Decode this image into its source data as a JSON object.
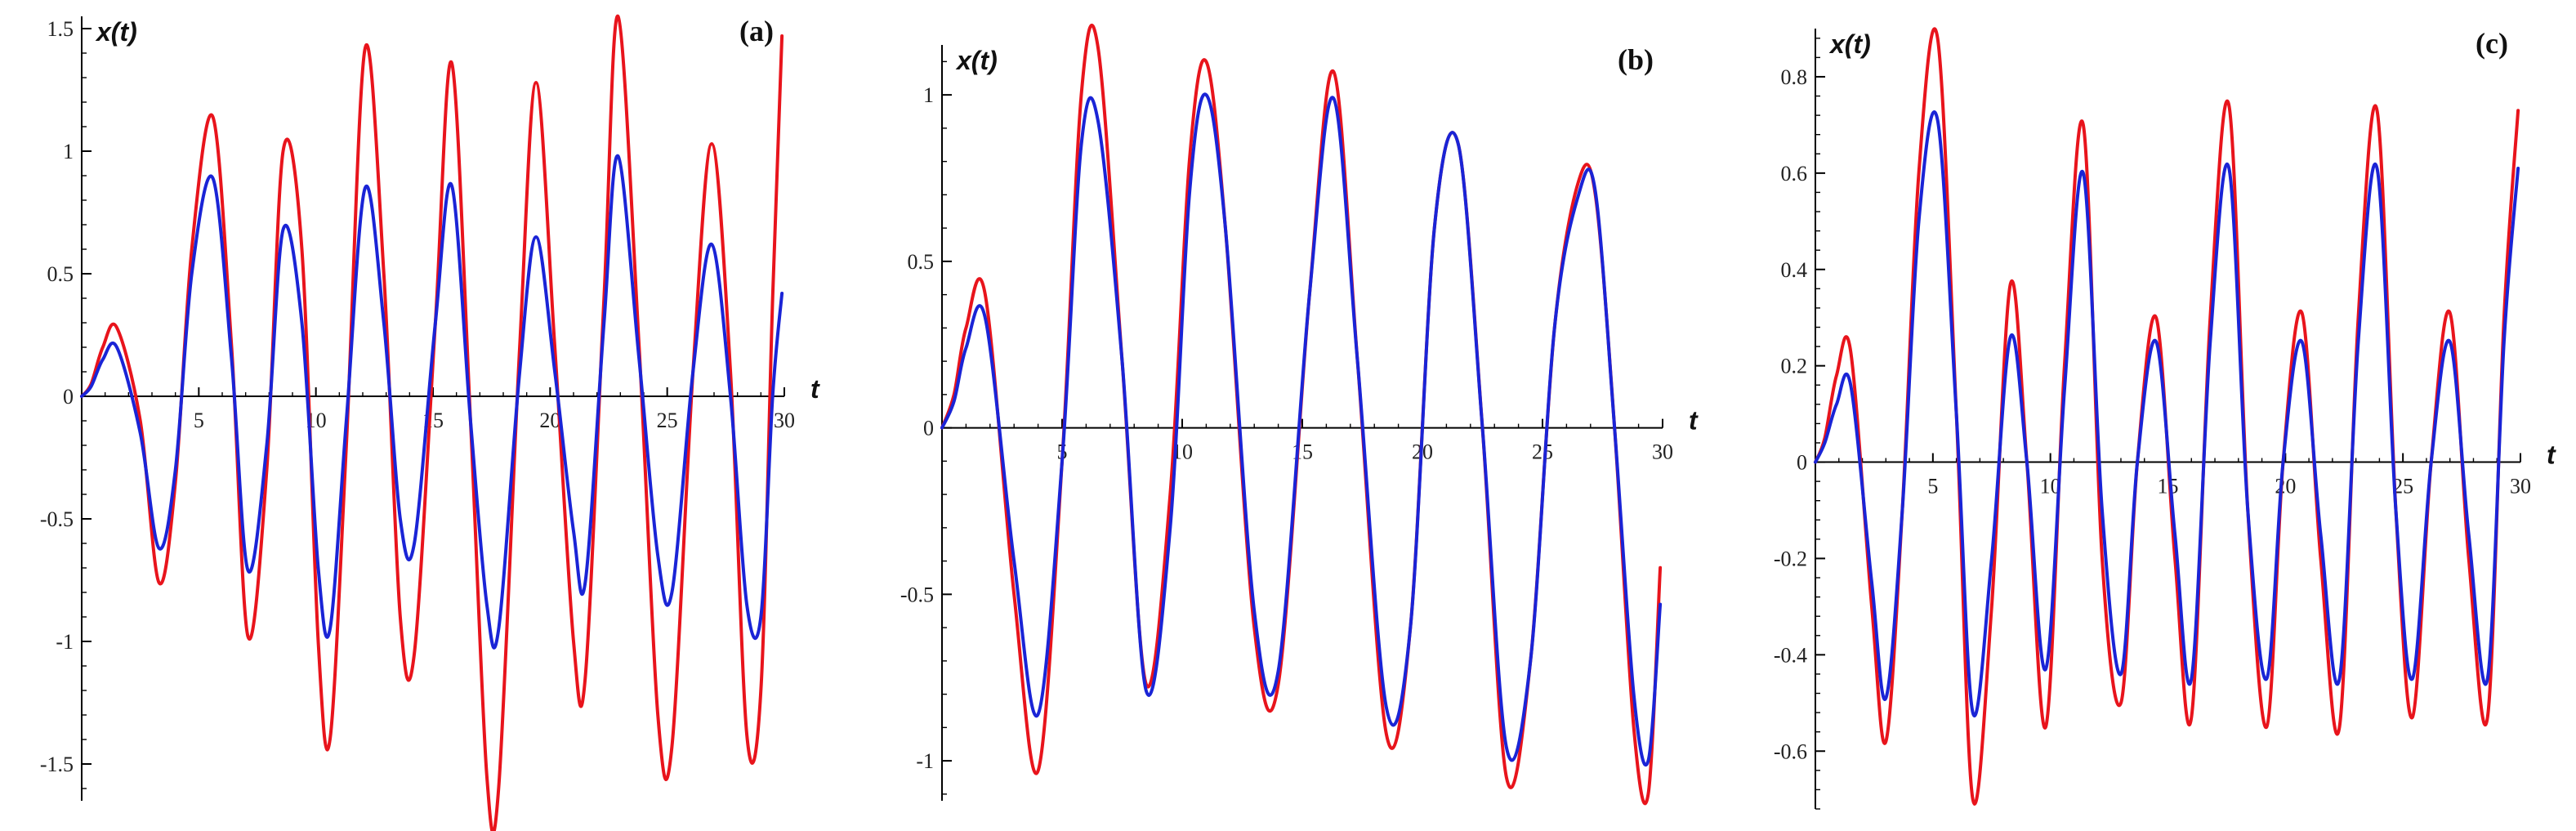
{
  "chart_data": [
    {
      "type": "line",
      "panel_label": "(a)",
      "xlabel": "t",
      "ylabel": "x(t)",
      "xlim": [
        0,
        30
      ],
      "ylim": [
        -1.65,
        1.55
      ],
      "x_ticks": [
        5,
        10,
        15,
        20,
        25,
        30
      ],
      "x_tick_labels": [
        "5",
        "10",
        "15",
        "20",
        "25",
        "30"
      ],
      "y_ticks": [
        -1.5,
        -1,
        -0.5,
        0,
        0.5,
        1,
        1.5
      ],
      "y_tick_labels": [
        "-1.5",
        "-1",
        "-0.5",
        "0",
        "0.5",
        "1",
        "1.5"
      ],
      "grid": false,
      "series": [
        {
          "color": "#e8141c",
          "x": [
            0,
            0.4,
            0.9,
            1.5,
            2.5,
            3.3,
            4.0,
            4.7,
            5.6,
            6.4,
            7.1,
            7.9,
            8.6,
            9.4,
            10.1,
            10.6,
            11.3,
            12.1,
            12.9,
            13.6,
            14.2,
            15.1,
            15.8,
            16.6,
            17.3,
            17.8,
            18.7,
            19.4,
            20.2,
            21.0,
            21.5,
            22.3,
            22.9,
            23.8,
            24.6,
            25.2,
            26.1,
            26.9,
            27.7,
            28.4,
            29.0,
            29.5,
            29.9
          ],
          "y": [
            0,
            0.05,
            0.2,
            0.28,
            -0.1,
            -0.76,
            -0.35,
            0.6,
            1.14,
            0.2,
            -0.98,
            -0.3,
            1.0,
            0.6,
            -1.0,
            -1.4,
            -0.2,
            1.42,
            0.5,
            -0.9,
            -1.05,
            0.3,
            1.36,
            -0.1,
            -1.55,
            -1.6,
            0.2,
            1.28,
            0.2,
            -1.0,
            -1.15,
            0.4,
            1.55,
            0.2,
            -1.3,
            -1.43,
            0.1,
            1.03,
            0.1,
            -1.38,
            -1.2,
            0.4,
            1.47
          ]
        },
        {
          "color": "#1a24d6",
          "x": [
            0,
            0.4,
            0.9,
            1.5,
            2.5,
            3.3,
            4.0,
            4.7,
            5.6,
            6.4,
            7.1,
            7.9,
            8.6,
            9.4,
            10.1,
            10.6,
            11.3,
            12.1,
            12.9,
            13.6,
            14.2,
            15.1,
            15.8,
            16.6,
            17.3,
            17.8,
            18.7,
            19.4,
            20.2,
            21.0,
            21.5,
            22.3,
            22.9,
            23.8,
            24.6,
            25.2,
            26.1,
            26.9,
            27.7,
            28.4,
            29.0,
            29.5,
            29.9
          ],
          "y": [
            0,
            0.04,
            0.15,
            0.2,
            -0.15,
            -0.62,
            -0.3,
            0.5,
            0.89,
            0.15,
            -0.71,
            -0.2,
            0.68,
            0.3,
            -0.7,
            -0.95,
            -0.1,
            0.85,
            0.3,
            -0.5,
            -0.6,
            0.3,
            0.86,
            -0.1,
            -0.85,
            -0.95,
            0.1,
            0.65,
            0.1,
            -0.55,
            -0.76,
            0.3,
            0.98,
            0.15,
            -0.65,
            -0.8,
            0.1,
            0.62,
            0.0,
            -0.85,
            -0.9,
            0.0,
            0.42
          ]
        }
      ]
    },
    {
      "type": "line",
      "panel_label": "(b)",
      "xlabel": "t",
      "ylabel": "x(t)",
      "xlim": [
        0,
        30
      ],
      "ylim": [
        -1.12,
        1.15
      ],
      "x_ticks": [
        5,
        10,
        15,
        20,
        25,
        30
      ],
      "x_tick_labels": [
        "5",
        "10",
        "15",
        "20",
        "25",
        "30"
      ],
      "y_ticks": [
        -1,
        -0.5,
        0,
        0.5,
        1
      ],
      "y_tick_labels": [
        "-1",
        "-0.5",
        "0",
        "0.5",
        "1"
      ],
      "grid": false,
      "series": [
        {
          "color": "#e8141c",
          "x": [
            0,
            0.5,
            1.0,
            1.8,
            3.0,
            4.0,
            5.0,
            5.8,
            6.5,
            7.5,
            8.5,
            9.5,
            10.3,
            11.0,
            11.8,
            13.0,
            14.0,
            15.3,
            16.3,
            17.3,
            18.5,
            19.5,
            20.5,
            21.5,
            22.5,
            23.5,
            24.5,
            25.5,
            26.5,
            27.2,
            28.0,
            28.8,
            29.4,
            29.9
          ],
          "y": [
            0,
            0.1,
            0.3,
            0.4,
            -0.5,
            -1.03,
            -0.1,
            1.0,
            1.14,
            0.2,
            -0.77,
            -0.2,
            0.8,
            1.1,
            0.6,
            -0.6,
            -0.77,
            0.4,
            1.07,
            0.2,
            -0.92,
            -0.6,
            0.6,
            0.85,
            0.0,
            -1.05,
            -0.7,
            0.3,
            0.74,
            0.7,
            0.0,
            -0.9,
            -1.1,
            -0.42
          ]
        },
        {
          "color": "#1a24d6",
          "x": [
            0,
            0.5,
            1.0,
            1.8,
            3.0,
            4.0,
            5.0,
            5.8,
            6.5,
            7.5,
            8.5,
            9.5,
            10.3,
            11.0,
            11.8,
            13.0,
            14.0,
            15.3,
            16.3,
            17.3,
            18.5,
            19.5,
            20.5,
            21.5,
            22.5,
            23.5,
            24.5,
            25.5,
            26.5,
            27.2,
            28.0,
            28.8,
            29.4,
            29.9
          ],
          "y": [
            0,
            0.08,
            0.24,
            0.33,
            -0.4,
            -0.86,
            -0.1,
            0.85,
            0.92,
            0.2,
            -0.79,
            -0.3,
            0.7,
            1.0,
            0.6,
            -0.55,
            -0.73,
            0.4,
            0.99,
            0.2,
            -0.84,
            -0.6,
            0.6,
            0.85,
            0.0,
            -0.96,
            -0.7,
            0.3,
            0.7,
            0.71,
            0.0,
            -0.8,
            -1.0,
            -0.53
          ]
        }
      ]
    },
    {
      "type": "line",
      "panel_label": "(c)",
      "xlabel": "t",
      "ylabel": "x(t)",
      "xlim": [
        0,
        30
      ],
      "ylim": [
        -0.72,
        0.9
      ],
      "x_ticks": [
        5,
        10,
        15,
        20,
        25,
        30
      ],
      "x_tick_labels": [
        "5",
        "10",
        "15",
        "20",
        "25",
        "30"
      ],
      "y_ticks": [
        -0.6,
        -0.4,
        -0.2,
        0,
        0.2,
        0.4,
        0.6,
        0.8
      ],
      "y_tick_labels": [
        "-0.6",
        "-0.4",
        "-0.2",
        "0",
        "0.2",
        "0.4",
        "0.6",
        "0.8"
      ],
      "grid": false,
      "series": [
        {
          "color": "#e8141c",
          "x": [
            0,
            0.4,
            0.9,
            1.5,
            2.4,
            3.0,
            3.7,
            4.4,
            5.2,
            6.0,
            6.7,
            7.5,
            8.3,
            9.0,
            9.8,
            10.6,
            11.4,
            12.2,
            13.0,
            13.7,
            14.5,
            15.3,
            16.0,
            16.8,
            17.6,
            18.4,
            19.2,
            19.9,
            20.7,
            21.5,
            22.3,
            23.1,
            23.9,
            24.7,
            25.4,
            26.2,
            27.0,
            27.8,
            28.6,
            29.3,
            29.9
          ],
          "y": [
            0,
            0.05,
            0.18,
            0.23,
            -0.3,
            -0.58,
            -0.1,
            0.6,
            0.88,
            0.1,
            -0.7,
            -0.3,
            0.37,
            0.0,
            -0.55,
            0.2,
            0.7,
            -0.2,
            -0.5,
            0.0,
            0.3,
            -0.2,
            -0.53,
            0.3,
            0.74,
            -0.1,
            -0.55,
            0.0,
            0.31,
            -0.2,
            -0.55,
            0.3,
            0.73,
            -0.1,
            -0.53,
            0.0,
            0.31,
            -0.2,
            -0.53,
            0.3,
            0.73
          ]
        },
        {
          "color": "#1a24d6",
          "x": [
            0,
            0.4,
            0.9,
            1.5,
            2.4,
            3.0,
            3.7,
            4.4,
            5.2,
            6.0,
            6.7,
            7.5,
            8.3,
            9.0,
            9.8,
            10.6,
            11.4,
            12.2,
            13.0,
            13.7,
            14.5,
            15.3,
            16.0,
            16.8,
            17.6,
            18.4,
            19.2,
            19.9,
            20.7,
            21.5,
            22.3,
            23.1,
            23.9,
            24.7,
            25.4,
            26.2,
            27.0,
            27.8,
            28.6,
            29.3,
            29.9
          ],
          "y": [
            0,
            0.04,
            0.12,
            0.16,
            -0.25,
            -0.49,
            -0.1,
            0.5,
            0.71,
            0.1,
            -0.52,
            -0.2,
            0.26,
            0.0,
            -0.43,
            0.15,
            0.6,
            -0.1,
            -0.44,
            0.0,
            0.25,
            -0.15,
            -0.45,
            0.25,
            0.61,
            -0.1,
            -0.45,
            0.0,
            0.25,
            -0.15,
            -0.45,
            0.25,
            0.61,
            -0.1,
            -0.45,
            0.0,
            0.25,
            -0.15,
            -0.45,
            0.25,
            0.61
          ]
        }
      ]
    }
  ]
}
